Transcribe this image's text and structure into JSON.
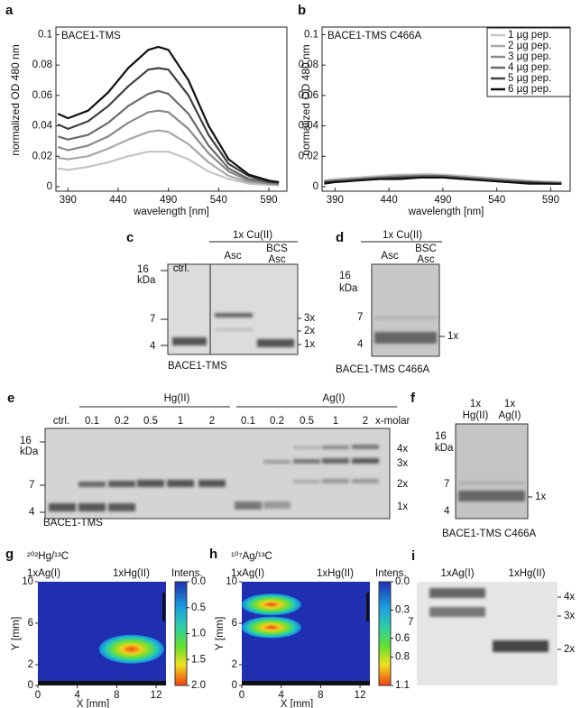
{
  "chart_data": [
    {
      "type": "line",
      "panel": "a",
      "title": "BACE1-TMS",
      "x_label": "wavelength [nm]",
      "y_label": "normalized OD 480 nm",
      "x": [
        380,
        390,
        410,
        430,
        450,
        470,
        480,
        490,
        510,
        530,
        550,
        570,
        590,
        600
      ],
      "series": [
        {
          "name": "1 µg pep.",
          "color": "#c4c4c4",
          "values": [
            0.012,
            0.011,
            0.013,
            0.016,
            0.02,
            0.023,
            0.023,
            0.023,
            0.018,
            0.01,
            0.005,
            0.002,
            0.001,
            0.001
          ]
        },
        {
          "name": "2 µg pep.",
          "color": "#a8a8a8",
          "values": [
            0.019,
            0.018,
            0.02,
            0.025,
            0.031,
            0.036,
            0.037,
            0.036,
            0.028,
            0.016,
            0.007,
            0.003,
            0.002,
            0.001
          ]
        },
        {
          "name": "3 µg pep.",
          "color": "#8a8a8a",
          "values": [
            0.026,
            0.024,
            0.027,
            0.033,
            0.042,
            0.049,
            0.05,
            0.049,
            0.038,
            0.022,
            0.01,
            0.004,
            0.002,
            0.002
          ]
        },
        {
          "name": "4 µg pep.",
          "color": "#6a6a6a",
          "values": [
            0.033,
            0.031,
            0.034,
            0.042,
            0.053,
            0.061,
            0.063,
            0.061,
            0.048,
            0.027,
            0.012,
            0.005,
            0.003,
            0.002
          ]
        },
        {
          "name": "5 µg pep.",
          "color": "#404040",
          "values": [
            0.041,
            0.038,
            0.043,
            0.053,
            0.066,
            0.077,
            0.078,
            0.077,
            0.06,
            0.034,
            0.015,
            0.007,
            0.003,
            0.003
          ]
        },
        {
          "name": "6 µg pep.",
          "color": "#111111",
          "values": [
            0.048,
            0.045,
            0.05,
            0.062,
            0.078,
            0.09,
            0.092,
            0.09,
            0.07,
            0.04,
            0.018,
            0.008,
            0.004,
            0.003
          ]
        }
      ],
      "xlim": [
        378,
        608
      ],
      "ylim": [
        -0.003,
        0.105
      ],
      "xticks": [
        390,
        440,
        490,
        540,
        590
      ],
      "yticks": [
        0,
        0.02,
        0.04,
        0.06,
        0.08,
        0.1
      ]
    },
    {
      "type": "line",
      "panel": "b",
      "title": "BACE1-TMS C466A",
      "x_label": "wavelength [nm]",
      "y_label": "normalized OD 480 nm",
      "x": [
        380,
        390,
        410,
        430,
        450,
        470,
        480,
        490,
        510,
        530,
        550,
        570,
        590,
        600
      ],
      "series": [
        {
          "name": "1 µg pep.",
          "color": "#c4c4c4",
          "values": [
            0.004,
            0.005,
            0.006,
            0.007,
            0.008,
            0.008,
            0.008,
            0.008,
            0.007,
            0.006,
            0.005,
            0.004,
            0.003,
            0.003
          ]
        },
        {
          "name": "2 µg pep.",
          "color": "#a8a8a8",
          "values": [
            0.004,
            0.004,
            0.005,
            0.006,
            0.007,
            0.008,
            0.008,
            0.007,
            0.006,
            0.005,
            0.004,
            0.003,
            0.003,
            0.003
          ]
        },
        {
          "name": "3 µg pep.",
          "color": "#8a8a8a",
          "values": [
            0.003,
            0.004,
            0.005,
            0.006,
            0.007,
            0.007,
            0.007,
            0.007,
            0.006,
            0.005,
            0.004,
            0.003,
            0.003,
            0.002
          ]
        },
        {
          "name": "4 µg pep.",
          "color": "#6a6a6a",
          "values": [
            0.003,
            0.004,
            0.005,
            0.006,
            0.006,
            0.007,
            0.007,
            0.007,
            0.006,
            0.005,
            0.004,
            0.003,
            0.002,
            0.002
          ]
        },
        {
          "name": "5 µg pep.",
          "color": "#404040",
          "values": [
            0.003,
            0.003,
            0.004,
            0.005,
            0.006,
            0.006,
            0.006,
            0.006,
            0.005,
            0.004,
            0.003,
            0.003,
            0.002,
            0.002
          ]
        },
        {
          "name": "6 µg pep.",
          "color": "#111111",
          "values": [
            0.002,
            0.003,
            0.004,
            0.005,
            0.005,
            0.006,
            0.006,
            0.006,
            0.005,
            0.004,
            0.003,
            0.002,
            0.002,
            0.002
          ]
        }
      ],
      "xlim": [
        378,
        608
      ],
      "ylim": [
        -0.003,
        0.105
      ],
      "xticks": [
        390,
        440,
        490,
        540,
        590
      ],
      "yticks": [
        0,
        0.02,
        0.04,
        0.06,
        0.08,
        0.1
      ],
      "legend": "upper right"
    }
  ],
  "gels": {
    "c": {
      "panel": "c",
      "treatment": "1x Cu(II)",
      "lanes": [
        "ctrl.",
        "Asc",
        [
          "BCS",
          "Asc"
        ]
      ],
      "markers": [
        "16",
        "kDa",
        "7",
        "4"
      ],
      "bands": [
        "3x",
        "2x",
        "1x"
      ],
      "caption": "BACE1-TMS"
    },
    "d": {
      "panel": "d",
      "treatment": "1x Cu(II)",
      "lanes": [
        "Asc",
        [
          "BSC",
          "Asc"
        ]
      ],
      "markers": [
        "16",
        "kDa",
        "7",
        "4"
      ],
      "bands": [
        "1x"
      ],
      "caption": "BACE1-TMS C466A"
    },
    "e": {
      "panel": "e",
      "groups": [
        "Hg(II)",
        "Ag(I)"
      ],
      "lanes": [
        "ctrl.",
        "0.1",
        "0.2",
        "0.5",
        "1",
        "2",
        "0.1",
        "0.2",
        "0.5",
        "1",
        "2"
      ],
      "unit": "x-molar",
      "markers": [
        "16",
        "kDa",
        "7",
        "4"
      ],
      "bands": [
        "4x",
        "3x",
        "2x",
        "1x"
      ],
      "caption": "BACE1-TMS"
    },
    "f": {
      "panel": "f",
      "lanes": [
        [
          "1x",
          "Hg(II)"
        ],
        [
          "1x",
          "Ag(I)"
        ]
      ],
      "markers": [
        "16",
        "kDa",
        "7",
        "4"
      ],
      "bands": [
        "1x"
      ],
      "caption": "BACE1-TMS C466A"
    },
    "i": {
      "panel": "i",
      "lanes": [
        "1xAg(I)",
        "1xHg(II)"
      ],
      "markers": [
        "7"
      ],
      "bands": [
        "4x",
        "3x",
        "2x"
      ]
    }
  },
  "maps": [
    {
      "panel": "g",
      "title": "²⁰²Hg/¹³C",
      "labels": [
        "1xAg(I)",
        "1xHg(II)"
      ],
      "colorbar_label": "Intens.",
      "x_label": "X [mm]",
      "y_label": "Y [mm]",
      "xlim": [
        0,
        13
      ],
      "ylim": [
        0,
        10
      ],
      "xticks": [
        0,
        4,
        8,
        12
      ],
      "yticks": [
        0,
        2,
        6,
        10
      ],
      "clim": [
        0,
        2
      ],
      "cticks": [
        {
          "value": 0,
          "label": "0.0"
        },
        {
          "value": 0.5,
          "label": "0.5"
        },
        {
          "value": 1,
          "label": "1.0"
        },
        {
          "value": 1.5,
          "label": "1.5"
        },
        {
          "value": 2,
          "label": "2.0"
        }
      ]
    },
    {
      "panel": "h",
      "title": "¹⁰⁷Ag/¹³C",
      "labels": [
        "1xAg(I)",
        "1xHg(II)"
      ],
      "colorbar_label": "Intens.",
      "x_label": "X [mm]",
      "y_label": "Y [mm]",
      "xlim": [
        0,
        13
      ],
      "ylim": [
        0,
        10
      ],
      "xticks": [
        0,
        4,
        8,
        12
      ],
      "yticks": [
        0,
        2,
        6,
        10
      ],
      "clim": [
        0,
        1.1
      ],
      "cticks": [
        {
          "value": 0,
          "label": "0.0"
        },
        {
          "value": 0.3,
          "label": "0.3"
        },
        {
          "value": 0.6,
          "label": "0.6"
        },
        {
          "value": 0.8,
          "label": "0.8"
        },
        {
          "value": 1.1,
          "label": "1.1"
        }
      ]
    }
  ]
}
